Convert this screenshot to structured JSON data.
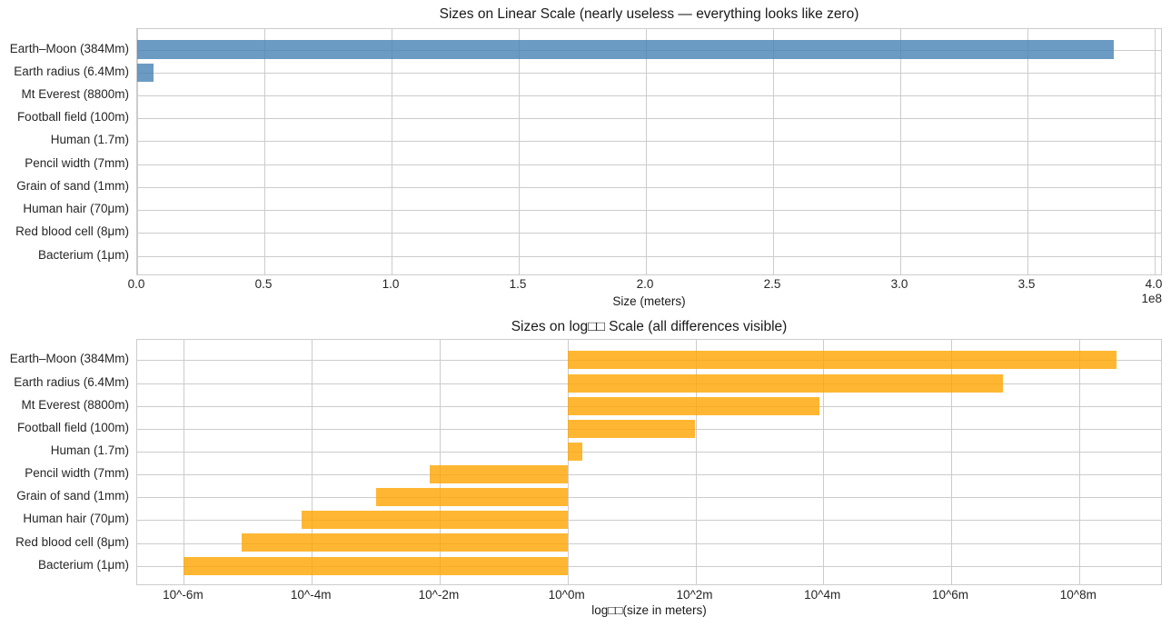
{
  "figure": {
    "background": "#ffffff",
    "grid_color": "#cccccc",
    "text_color": "#1a1a1a"
  },
  "chart_data": [
    {
      "type": "bar",
      "orientation": "horizontal",
      "title": "Sizes on Linear Scale (nearly useless — everything looks like zero)",
      "xlabel": "Size (meters)",
      "offset_text": "1e8",
      "bar_color": "#4682B4",
      "bar_alpha": 0.8,
      "grid": true,
      "legend": "none",
      "categories": [
        "Earth–Moon (384Mm)",
        "Earth radius (6.4Mm)",
        "Mt Everest (8800m)",
        "Football field (100m)",
        "Human (1.7m)",
        "Pencil width (7mm)",
        "Grain of sand (1mm)",
        "Human hair (70μm)",
        "Red blood cell (8μm)",
        "Bacterium (1μm)"
      ],
      "values": [
        384000000,
        6400000,
        8800,
        100,
        1.7,
        0.007,
        0.001,
        7e-05,
        8e-06,
        1e-06
      ],
      "xlim": [
        0,
        403200000
      ],
      "ylim": [
        -0.89,
        9.89
      ],
      "bar_thickness": 0.8,
      "xticks": [
        {
          "value": 0,
          "label": "0.0"
        },
        {
          "value": 50000000,
          "label": "0.5"
        },
        {
          "value": 100000000,
          "label": "1.0"
        },
        {
          "value": 150000000,
          "label": "1.5"
        },
        {
          "value": 200000000,
          "label": "2.0"
        },
        {
          "value": 250000000,
          "label": "2.5"
        },
        {
          "value": 300000000,
          "label": "3.0"
        },
        {
          "value": 350000000,
          "label": "3.5"
        },
        {
          "value": 400000000,
          "label": "4.0"
        }
      ]
    },
    {
      "type": "bar",
      "orientation": "horizontal",
      "title": "Sizes on log□□ Scale (all differences visible)",
      "xlabel": "log□□(size in meters)",
      "bar_color": "#FFA500",
      "bar_alpha": 0.8,
      "grid": true,
      "legend": "none",
      "baseline": 0,
      "categories": [
        "Earth–Moon (384Mm)",
        "Earth radius (6.4Mm)",
        "Mt Everest (8800m)",
        "Football field (100m)",
        "Human (1.7m)",
        "Pencil width (7mm)",
        "Grain of sand (1mm)",
        "Human hair (70μm)",
        "Red blood cell (8μm)",
        "Bacterium (1μm)"
      ],
      "values": [
        8.5843,
        6.8062,
        3.9445,
        2.0,
        0.2304,
        -2.1549,
        -3.0,
        -4.1549,
        -5.0969,
        -6.0
      ],
      "xlim": [
        -6.73,
        9.31
      ],
      "ylim": [
        -0.89,
        9.89
      ],
      "bar_thickness": 0.8,
      "xticks": [
        {
          "value": -6,
          "label": "10^-6m"
        },
        {
          "value": -4,
          "label": "10^-4m"
        },
        {
          "value": -2,
          "label": "10^-2m"
        },
        {
          "value": 0,
          "label": "10^0m"
        },
        {
          "value": 2,
          "label": "10^2m"
        },
        {
          "value": 4,
          "label": "10^4m"
        },
        {
          "value": 6,
          "label": "10^6m"
        },
        {
          "value": 8,
          "label": "10^8m"
        }
      ]
    }
  ]
}
